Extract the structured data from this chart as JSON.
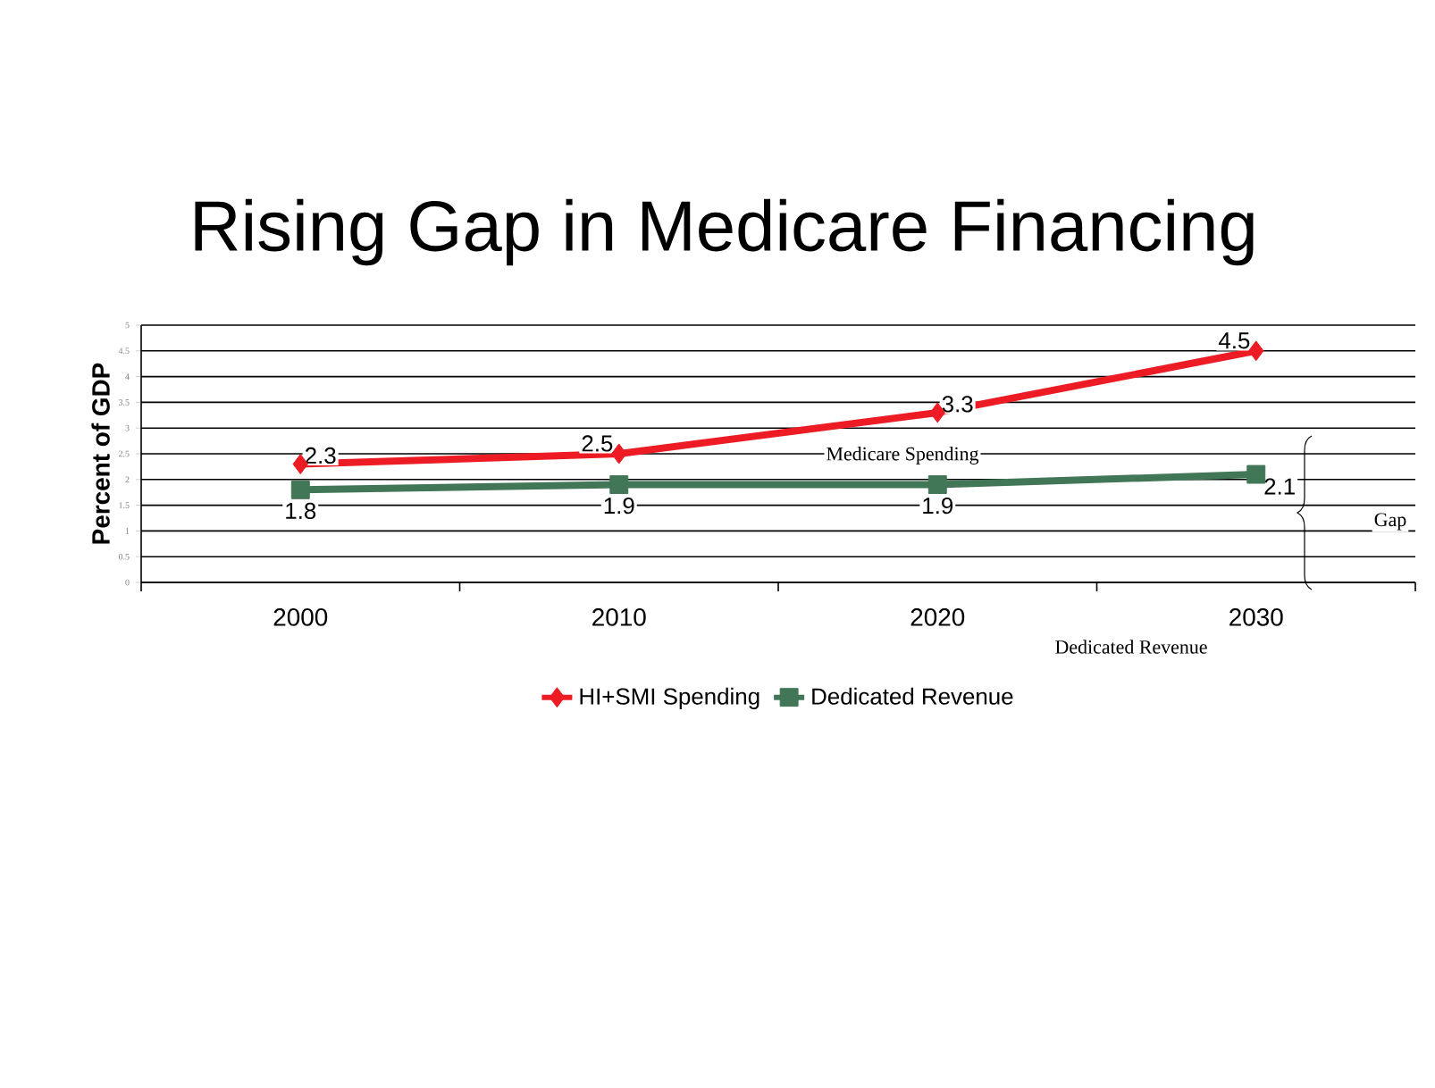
{
  "chart_data": {
    "type": "line",
    "title": "Rising Gap in Medicare Financing",
    "ylabel": "Percent of GDP",
    "categories": [
      "2000",
      "2010",
      "2020",
      "2030"
    ],
    "series": [
      {
        "name": "HI+SMI Spending",
        "color": "#ed1c24",
        "marker": "diamond",
        "values": [
          2.3,
          2.5,
          3.3,
          4.5
        ]
      },
      {
        "name": "Dedicated Revenue",
        "color": "#417656",
        "marker": "square",
        "values": [
          1.8,
          1.9,
          1.9,
          2.1
        ]
      }
    ],
    "ylim": [
      0,
      5
    ],
    "yticks": [
      0,
      0.5,
      1,
      1.5,
      2,
      2.5,
      3,
      3.5,
      4,
      4.5,
      5
    ],
    "grid": "y",
    "legend": "bottom",
    "data_labels": true,
    "annotations": [
      "Medicare Spending",
      "Dedicated Revenue",
      "Gap"
    ]
  }
}
